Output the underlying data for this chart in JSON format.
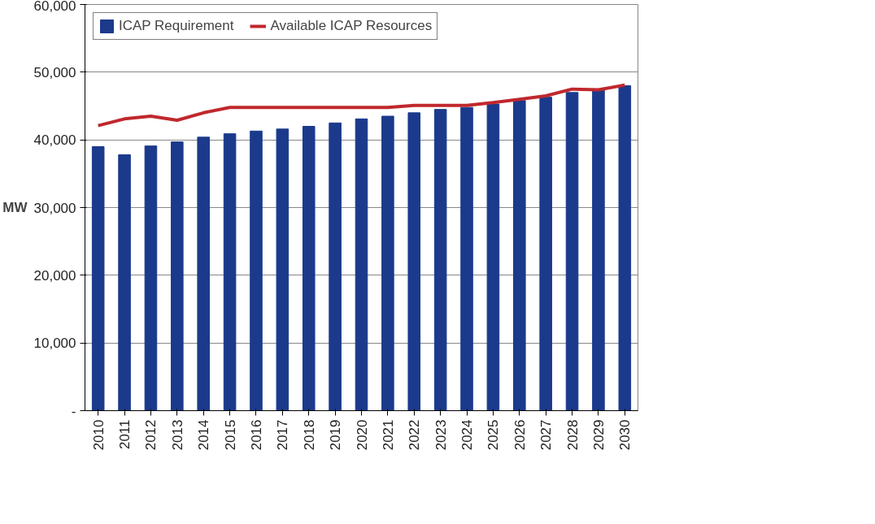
{
  "chart_data": {
    "type": "bar",
    "ylabel": "MW",
    "categories": [
      "2010",
      "2011",
      "2012",
      "2013",
      "2014",
      "2015",
      "2016",
      "2017",
      "2018",
      "2019",
      "2020",
      "2021",
      "2022",
      "2023",
      "2024",
      "2025",
      "2026",
      "2027",
      "2028",
      "2029",
      "2030"
    ],
    "series": [
      {
        "name": "ICAP Requirement",
        "color": "#1b3a8c",
        "values": [
          39000,
          37800,
          39100,
          39700,
          40400,
          40900,
          41300,
          41600,
          42000,
          42500,
          43100,
          43500,
          44000,
          44500,
          44800,
          45300,
          45800,
          46300,
          47000,
          47400,
          48000
        ]
      },
      {
        "name": "Available ICAP Resources",
        "type": "line",
        "color": "#c0282d",
        "values": [
          42100,
          43100,
          43500,
          42900,
          44000,
          44800,
          44800,
          44800,
          44800,
          44800,
          44800,
          44800,
          45100,
          45100,
          45100,
          45500,
          46000,
          46500,
          47500,
          47400,
          48100
        ]
      }
    ],
    "ylim": [
      0,
      60000
    ],
    "yticks": [
      {
        "value": 0,
        "label": "-"
      },
      {
        "value": 10000,
        "label": "10,000"
      },
      {
        "value": 20000,
        "label": "20,000"
      },
      {
        "value": 30000,
        "label": "30,000"
      },
      {
        "value": 40000,
        "label": "40,000"
      },
      {
        "value": 50000,
        "label": "50,000"
      },
      {
        "value": 60000,
        "label": "60,000"
      }
    ],
    "grid": "y",
    "legend": "top left"
  }
}
